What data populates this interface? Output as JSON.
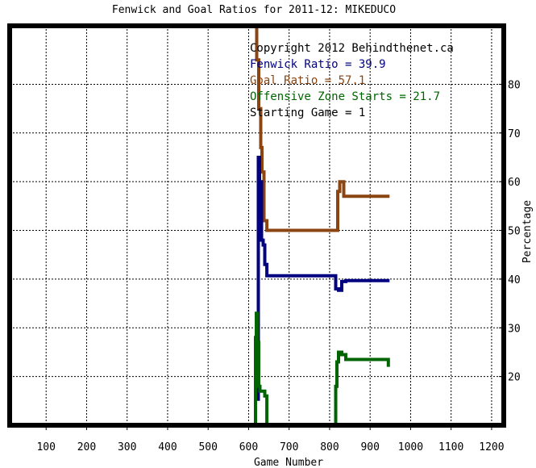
{
  "chart_data": {
    "type": "line",
    "title": "Fenwick and Goal Ratios for 2011-12: MIKEDUCO",
    "xlabel": "Game Number",
    "ylabel": "Percentage",
    "xlim": [
      10,
      1230
    ],
    "ylim": [
      10,
      92
    ],
    "xticks": [
      100,
      200,
      300,
      400,
      500,
      600,
      700,
      800,
      900,
      1000,
      1100,
      1200
    ],
    "yticks": [
      20,
      30,
      40,
      50,
      60,
      70,
      80
    ],
    "grid": true,
    "annotations": [
      {
        "text": "Copyright 2012 Behindthenet.ca",
        "color": "#000000"
      },
      {
        "text": "Fenwick Ratio = 39.9",
        "color": "#000080"
      },
      {
        "text": "Goal Ratio = 57.1",
        "color": "#8b4513"
      },
      {
        "text": "Offensive Zone Starts = 21.7",
        "color": "#006400"
      },
      {
        "text": "Starting Game = 1",
        "color": "#000000"
      }
    ],
    "series": [
      {
        "color": "#8b4513",
        "x": [
          620,
          620,
          625,
          625,
          630,
          630,
          633,
          633,
          638,
          638,
          645,
          645,
          820,
          820,
          825,
          825,
          835,
          835,
          948
        ],
        "y": [
          92,
          85,
          85,
          75,
          75,
          67,
          67,
          62,
          62,
          52,
          52,
          50,
          50,
          58,
          58,
          60,
          60,
          57,
          57
        ]
      },
      {
        "color": "#000080",
        "x": [
          624,
          624,
          627,
          627,
          629,
          629,
          632,
          632,
          636,
          636,
          640,
          640,
          645,
          645,
          815,
          815,
          822,
          822,
          830,
          830,
          840,
          840,
          948
        ],
        "y": [
          15,
          65,
          65,
          55,
          55,
          60,
          60,
          48,
          48,
          47,
          47,
          43,
          43,
          40.7,
          40.7,
          38,
          38,
          37.7,
          37.7,
          39.5,
          39.5,
          39.7,
          39.7
        ]
      },
      {
        "color": "#006400",
        "x": [
          617,
          617,
          619,
          619,
          621,
          621,
          623,
          623,
          625,
          625,
          628,
          628,
          635,
          635,
          640,
          640,
          645,
          645
        ],
        "y": [
          10,
          28,
          28,
          33,
          33,
          25,
          25,
          27,
          27,
          18,
          18,
          17,
          17,
          17,
          17,
          16,
          16,
          10
        ]
      },
      {
        "color": "#006400",
        "x": [
          815,
          815,
          818,
          818,
          822,
          822,
          830,
          830,
          840,
          840,
          945,
          945
        ],
        "y": [
          10,
          18,
          18,
          23,
          23,
          25,
          25,
          24.5,
          24.5,
          23.5,
          23.5,
          22
        ]
      }
    ]
  }
}
